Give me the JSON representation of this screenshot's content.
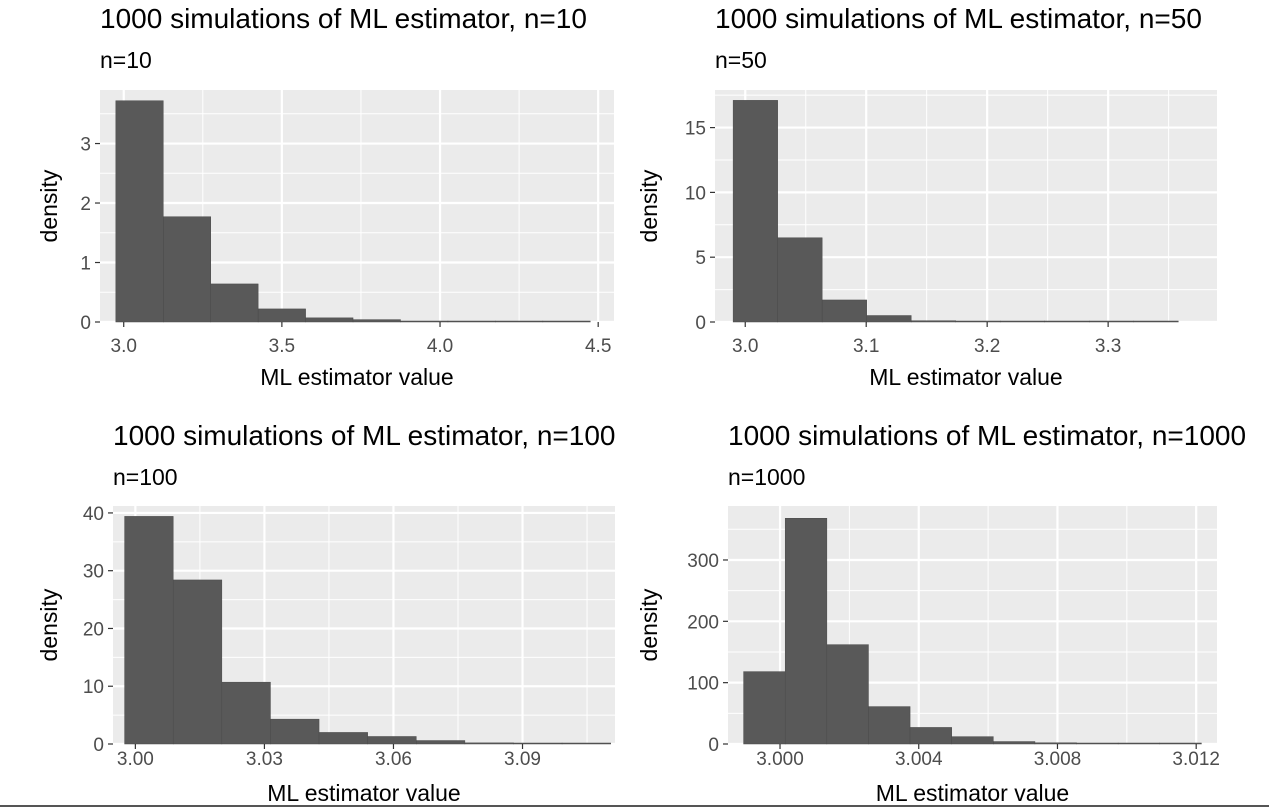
{
  "chart_data": [
    {
      "type": "bar",
      "title": "1000 simulations of ML estimator, n=10",
      "subtitle": "n=10",
      "xlabel": "ML estimator value",
      "ylabel": "density",
      "xlim": [
        2.925,
        4.55
      ],
      "ylim": [
        0,
        3.9
      ],
      "xticks": [
        3.0,
        3.5,
        4.0,
        4.5
      ],
      "xtick_labels": [
        "3.0",
        "3.5",
        "4.0",
        "4.5"
      ],
      "yticks": [
        0,
        1,
        2,
        3
      ],
      "ytick_labels": [
        "0",
        "1",
        "2",
        "3"
      ],
      "bins": [
        {
          "x0": 2.975,
          "x1": 3.125,
          "density": 3.72
        },
        {
          "x0": 3.125,
          "x1": 3.275,
          "density": 1.77
        },
        {
          "x0": 3.275,
          "x1": 3.425,
          "density": 0.64
        },
        {
          "x0": 3.425,
          "x1": 3.575,
          "density": 0.22
        },
        {
          "x0": 3.575,
          "x1": 3.725,
          "density": 0.07
        },
        {
          "x0": 3.725,
          "x1": 3.875,
          "density": 0.04
        },
        {
          "x0": 3.875,
          "x1": 4.025,
          "density": 0.01
        },
        {
          "x0": 4.025,
          "x1": 4.175,
          "density": 0.0
        },
        {
          "x0": 4.175,
          "x1": 4.325,
          "density": 0.0
        },
        {
          "x0": 4.325,
          "x1": 4.475,
          "density": 0.01
        }
      ]
    },
    {
      "type": "bar",
      "title": "1000 simulations of ML estimator, n=50",
      "subtitle": "n=50",
      "xlabel": "ML estimator value",
      "ylabel": "density",
      "xlim": [
        2.975,
        3.39
      ],
      "ylim": [
        0,
        17.9
      ],
      "xticks": [
        3.0,
        3.1,
        3.2,
        3.3
      ],
      "xtick_labels": [
        "3.0",
        "3.1",
        "3.2",
        "3.3"
      ],
      "yticks": [
        0,
        5,
        10,
        15
      ],
      "ytick_labels": [
        "0",
        "5",
        "10",
        "15"
      ],
      "bins": [
        {
          "x0": 2.99,
          "x1": 3.0268,
          "density": 17.1
        },
        {
          "x0": 3.0268,
          "x1": 3.0636,
          "density": 6.5
        },
        {
          "x0": 3.0636,
          "x1": 3.1004,
          "density": 1.7
        },
        {
          "x0": 3.1004,
          "x1": 3.1372,
          "density": 0.5
        },
        {
          "x0": 3.1372,
          "x1": 3.174,
          "density": 0.1
        },
        {
          "x0": 3.174,
          "x1": 3.2108,
          "density": 0.05
        },
        {
          "x0": 3.2108,
          "x1": 3.2476,
          "density": 0.02
        },
        {
          "x0": 3.2476,
          "x1": 3.2844,
          "density": 0.0
        },
        {
          "x0": 3.2844,
          "x1": 3.3212,
          "density": 0.0
        },
        {
          "x0": 3.3212,
          "x1": 3.358,
          "density": 0.02
        }
      ]
    },
    {
      "type": "bar",
      "title": "1000 simulations of ML estimator, n=100",
      "subtitle": "n=100",
      "xlabel": "ML estimator value",
      "ylabel": "density",
      "xlim": [
        2.9948,
        3.1115
      ],
      "ylim": [
        0,
        41.2
      ],
      "xticks": [
        3.0,
        3.03,
        3.06,
        3.09
      ],
      "xtick_labels": [
        "3.00",
        "3.03",
        "3.06",
        "3.09"
      ],
      "yticks": [
        0,
        10,
        20,
        30,
        40
      ],
      "ytick_labels": [
        "0",
        "10",
        "20",
        "30",
        "40"
      ],
      "bins": [
        {
          "x0": 2.9975,
          "x1": 3.0088,
          "density": 39.4
        },
        {
          "x0": 3.0088,
          "x1": 3.0201,
          "density": 28.4
        },
        {
          "x0": 3.0201,
          "x1": 3.0314,
          "density": 10.7
        },
        {
          "x0": 3.0314,
          "x1": 3.0427,
          "density": 4.3
        },
        {
          "x0": 3.0427,
          "x1": 3.054,
          "density": 2.0
        },
        {
          "x0": 3.054,
          "x1": 3.0653,
          "density": 1.3
        },
        {
          "x0": 3.0653,
          "x1": 3.0766,
          "density": 0.6
        },
        {
          "x0": 3.0766,
          "x1": 3.0879,
          "density": 0.2
        },
        {
          "x0": 3.0879,
          "x1": 3.0992,
          "density": 0.1
        },
        {
          "x0": 3.0992,
          "x1": 3.1105,
          "density": 0.1
        }
      ]
    },
    {
      "type": "bar",
      "title": "1000 simulations of ML estimator, n=1000",
      "subtitle": "n=1000",
      "xlabel": "ML estimator value",
      "ylabel": "density",
      "xlim": [
        2.9985,
        3.0126
      ],
      "ylim": [
        0,
        388
      ],
      "xticks": [
        3.0,
        3.004,
        3.008,
        3.012
      ],
      "xtick_labels": [
        "3.000",
        "3.004",
        "3.008",
        "3.012"
      ],
      "yticks": [
        0,
        100,
        200,
        300
      ],
      "ytick_labels": [
        "0",
        "100",
        "200",
        "300"
      ],
      "bins": [
        {
          "x0": 2.99895,
          "x1": 3.00015,
          "density": 118
        },
        {
          "x0": 3.00015,
          "x1": 3.00135,
          "density": 368
        },
        {
          "x0": 3.00135,
          "x1": 3.00255,
          "density": 162
        },
        {
          "x0": 3.00255,
          "x1": 3.00375,
          "density": 61
        },
        {
          "x0": 3.00375,
          "x1": 3.00495,
          "density": 27
        },
        {
          "x0": 3.00495,
          "x1": 3.00615,
          "density": 12
        },
        {
          "x0": 3.00615,
          "x1": 3.00735,
          "density": 4
        },
        {
          "x0": 3.00735,
          "x1": 3.00855,
          "density": 2
        },
        {
          "x0": 3.00855,
          "x1": 3.00975,
          "density": 1
        },
        {
          "x0": 3.00975,
          "x1": 3.01095,
          "density": 0.5
        },
        {
          "x0": 3.01095,
          "x1": 3.01215,
          "density": 0.3
        }
      ]
    }
  ],
  "colors": {
    "panel_background": "#EBEBEB",
    "grid_major": "#FFFFFF",
    "bar_fill": "#595959",
    "bar_outline": "#4a4a4a",
    "tick_text": "#4D4D4D",
    "text": "#000000"
  }
}
